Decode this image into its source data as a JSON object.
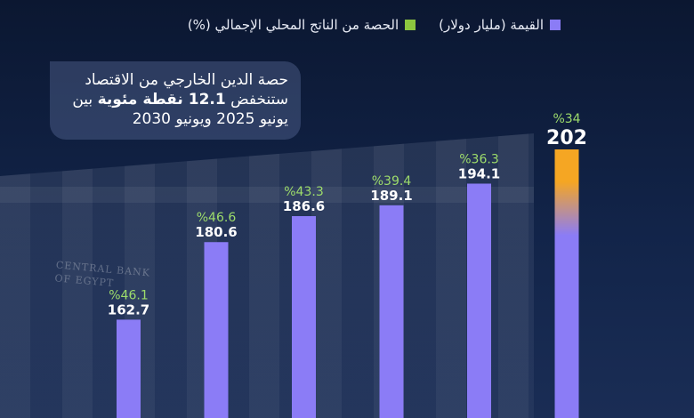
{
  "legend": {
    "value_label": "القيمة (مليار دولار)",
    "share_label": "الحصة من الناتج المحلي الإجمالي (%)"
  },
  "callout": {
    "line1": "حصة الدين الخارجي من الاقتصاد",
    "line2_pre": "ستنخفض ",
    "line2_bold": "12.1 نقطة مئوية",
    "line2_post": " بين",
    "line3": "يونيو 2025 ويونيو 2030"
  },
  "background": {
    "sign_line1": "CENTRAL BANK",
    "sign_line2": "OF EGYPT"
  },
  "colors": {
    "bar": "#8b7cf6",
    "share_text": "#9ddc6b",
    "highlight": "#f5a623",
    "legend_green": "#8cc63f"
  },
  "chart_data": {
    "type": "bar",
    "title": "",
    "xlabel": "",
    "ylabel": "",
    "ylim": [
      140,
      202
    ],
    "categories": [
      "",
      "",
      "",
      "",
      "",
      ""
    ],
    "series": [
      {
        "name": "القيمة (مليار دولار)",
        "values": [
          162.7,
          180.6,
          186.6,
          189.1,
          194.1,
          202
        ]
      },
      {
        "name": "الحصة من الناتج المحلي الإجمالي (%)",
        "values": [
          46.1,
          46.6,
          43.3,
          39.4,
          36.3,
          34
        ]
      }
    ],
    "value_labels": [
      "162.7",
      "180.6",
      "186.6",
      "189.1",
      "194.1",
      "202"
    ],
    "share_labels": [
      "%46.1",
      "%46.6",
      "%43.3",
      "%39.4",
      "%36.3",
      "%34"
    ],
    "highlight_index": 5
  }
}
